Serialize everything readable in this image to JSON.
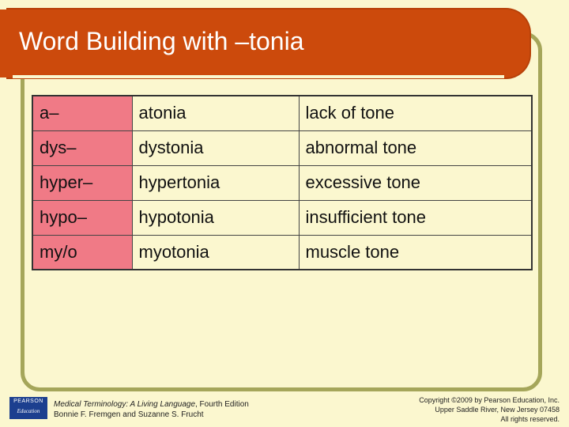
{
  "slide": {
    "title": "Word Building with –tonia",
    "rows": [
      {
        "prefix": "a–",
        "term": "atonia",
        "meaning": "lack of tone"
      },
      {
        "prefix": "dys–",
        "term": "dystonia",
        "meaning": "abnormal tone"
      },
      {
        "prefix": "hyper–",
        "term": "hypertonia",
        "meaning": "excessive tone"
      },
      {
        "prefix": "hypo–",
        "term": "hypotonia",
        "meaning": "insufficient tone"
      },
      {
        "prefix": "my/o",
        "term": "myotonia",
        "meaning": "muscle tone"
      }
    ]
  },
  "footer": {
    "logo_top": "PEARSON",
    "logo_bottom": "Education",
    "book_title": "Medical Terminology: A Living Language",
    "edition": ", Fourth Edition",
    "authors": "Bonnie F. Fremgen and Suzanne S. Frucht",
    "copyright_line1": "Copyright ©2009 by Pearson Education, Inc.",
    "copyright_line2": "Upper Saddle River, New Jersey 07458",
    "copyright_line3": "All rights reserved."
  },
  "colors": {
    "background": "#fbf7cf",
    "title_bar": "#cc4a0c",
    "prefix_column": "#f07a86",
    "frame": "#a5a65a",
    "logo": "#1c3f8f"
  }
}
